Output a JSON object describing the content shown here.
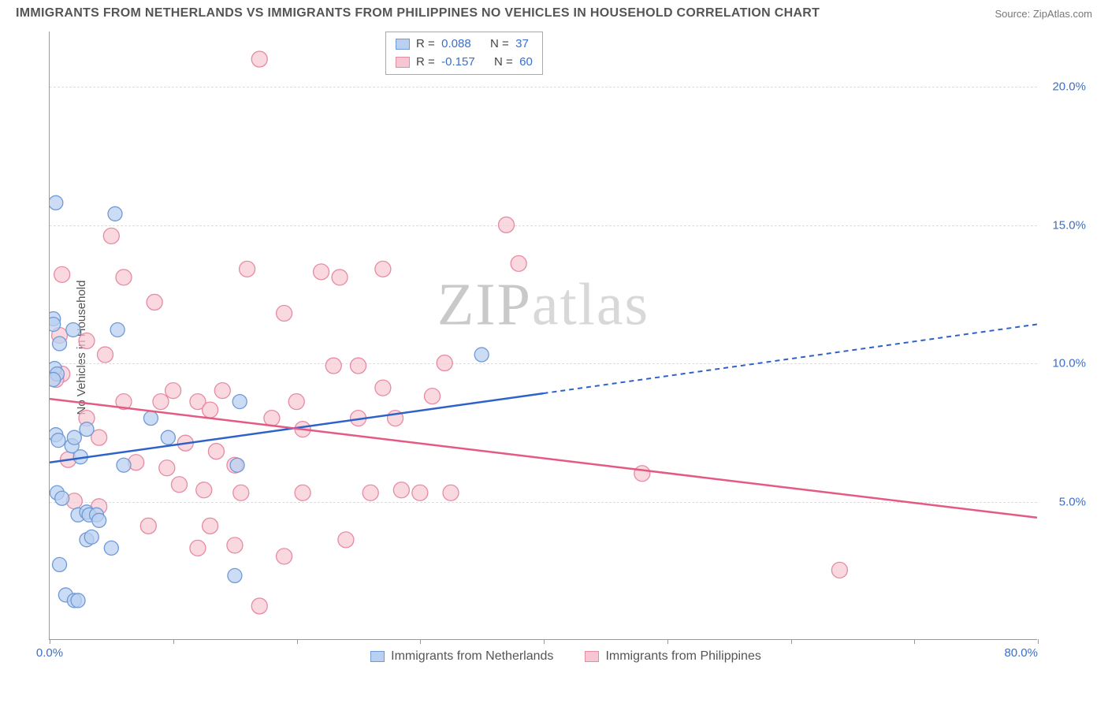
{
  "title": "IMMIGRANTS FROM NETHERLANDS VS IMMIGRANTS FROM PHILIPPINES NO VEHICLES IN HOUSEHOLD CORRELATION CHART",
  "source": "Source: ZipAtlas.com",
  "ylabel": "No Vehicles in Household",
  "watermark_a": "ZIP",
  "watermark_b": "atlas",
  "chart": {
    "type": "scatter",
    "xlim": [
      0,
      80
    ],
    "ylim": [
      0,
      22
    ],
    "x_ticks": [
      0,
      10,
      20,
      30,
      40,
      50,
      60,
      70,
      80
    ],
    "x_tick_labels_shown": {
      "0": "0.0%",
      "80": "80.0%"
    },
    "y_gridlines": [
      5,
      10,
      15,
      20
    ],
    "y_tick_labels": {
      "5": "5.0%",
      "10": "10.0%",
      "15": "15.0%",
      "20": "20.0%"
    },
    "grid_color": "#dddddd",
    "axis_color": "#999999",
    "background_color": "#ffffff",
    "tick_label_color": "#3b6fc9",
    "label_fontsize": 15,
    "series": [
      {
        "name": "Immigrants from Netherlands",
        "color_fill": "#b9d0f0",
        "color_stroke": "#6f9ad6",
        "line_color": "#2e62c9",
        "marker_radius": 9,
        "marker_opacity": 0.75,
        "stats": {
          "R": "0.088",
          "N": "37"
        },
        "trend": {
          "x1": 0,
          "y1": 6.4,
          "x2": 80,
          "y2": 11.4,
          "solid_until_x": 40
        },
        "points": [
          [
            0.5,
            15.8
          ],
          [
            0.3,
            11.6
          ],
          [
            0.3,
            11.4
          ],
          [
            0.8,
            10.7
          ],
          [
            0.4,
            9.8
          ],
          [
            0.6,
            9.6
          ],
          [
            0.3,
            9.4
          ],
          [
            1.9,
            11.2
          ],
          [
            0.5,
            7.4
          ],
          [
            0.7,
            7.2
          ],
          [
            1.8,
            7.0
          ],
          [
            2.0,
            7.3
          ],
          [
            2.5,
            6.6
          ],
          [
            3.0,
            7.6
          ],
          [
            0.6,
            5.3
          ],
          [
            1.0,
            5.1
          ],
          [
            2.3,
            4.5
          ],
          [
            3.0,
            4.6
          ],
          [
            3.2,
            4.5
          ],
          [
            3.8,
            4.5
          ],
          [
            0.8,
            2.7
          ],
          [
            1.3,
            1.6
          ],
          [
            2.0,
            1.4
          ],
          [
            2.3,
            1.4
          ],
          [
            3.0,
            3.6
          ],
          [
            3.4,
            3.7
          ],
          [
            5.3,
            15.4
          ],
          [
            5.5,
            11.2
          ],
          [
            9.6,
            7.3
          ],
          [
            15.0,
            2.3
          ],
          [
            15.2,
            6.3
          ],
          [
            15.4,
            8.6
          ],
          [
            8.2,
            8.0
          ],
          [
            6.0,
            6.3
          ],
          [
            4.0,
            4.3
          ],
          [
            5.0,
            3.3
          ],
          [
            35.0,
            10.3
          ]
        ]
      },
      {
        "name": "Immigrants from Philippines",
        "color_fill": "#f6c7d2",
        "color_stroke": "#e78aa3",
        "line_color": "#e35a83",
        "marker_radius": 10,
        "marker_opacity": 0.7,
        "stats": {
          "R": "-0.157",
          "N": "60"
        },
        "trend": {
          "x1": 0,
          "y1": 8.7,
          "x2": 80,
          "y2": 4.4,
          "solid_until_x": 80
        },
        "points": [
          [
            1.0,
            9.6
          ],
          [
            0.5,
            9.4
          ],
          [
            1.0,
            13.2
          ],
          [
            5.0,
            14.6
          ],
          [
            0.8,
            11.0
          ],
          [
            3.0,
            10.8
          ],
          [
            6.0,
            13.1
          ],
          [
            8.5,
            12.2
          ],
          [
            4.5,
            10.3
          ],
          [
            9.0,
            8.6
          ],
          [
            10.0,
            9.0
          ],
          [
            12.0,
            8.6
          ],
          [
            13.0,
            8.3
          ],
          [
            14.0,
            9.0
          ],
          [
            7.0,
            6.4
          ],
          [
            9.5,
            6.2
          ],
          [
            10.5,
            5.6
          ],
          [
            12.5,
            5.4
          ],
          [
            4.0,
            4.8
          ],
          [
            8.0,
            4.1
          ],
          [
            13.0,
            4.1
          ],
          [
            12.0,
            3.3
          ],
          [
            15.0,
            3.4
          ],
          [
            15.5,
            5.3
          ],
          [
            17.0,
            21.0
          ],
          [
            16.0,
            13.4
          ],
          [
            18.0,
            8.0
          ],
          [
            19.0,
            11.8
          ],
          [
            20.0,
            8.6
          ],
          [
            20.5,
            7.6
          ],
          [
            20.5,
            5.3
          ],
          [
            22.0,
            13.3
          ],
          [
            23.0,
            9.9
          ],
          [
            23.5,
            13.1
          ],
          [
            24.0,
            3.6
          ],
          [
            25.0,
            8.0
          ],
          [
            25.0,
            9.9
          ],
          [
            26.0,
            5.3
          ],
          [
            27.0,
            9.1
          ],
          [
            27.0,
            13.4
          ],
          [
            28.0,
            8.0
          ],
          [
            17.0,
            1.2
          ],
          [
            30.0,
            5.3
          ],
          [
            31.0,
            8.8
          ],
          [
            32.0,
            10.0
          ],
          [
            32.5,
            5.3
          ],
          [
            37.0,
            15.0
          ],
          [
            38.0,
            13.6
          ],
          [
            15.0,
            6.3
          ],
          [
            48.0,
            6.0
          ],
          [
            64.0,
            2.5
          ],
          [
            13.5,
            6.8
          ],
          [
            6.0,
            8.6
          ],
          [
            3.0,
            8.0
          ],
          [
            4.0,
            7.3
          ],
          [
            2.0,
            5.0
          ],
          [
            1.5,
            6.5
          ],
          [
            11.0,
            7.1
          ],
          [
            28.5,
            5.4
          ],
          [
            19.0,
            3.0
          ]
        ]
      }
    ]
  }
}
